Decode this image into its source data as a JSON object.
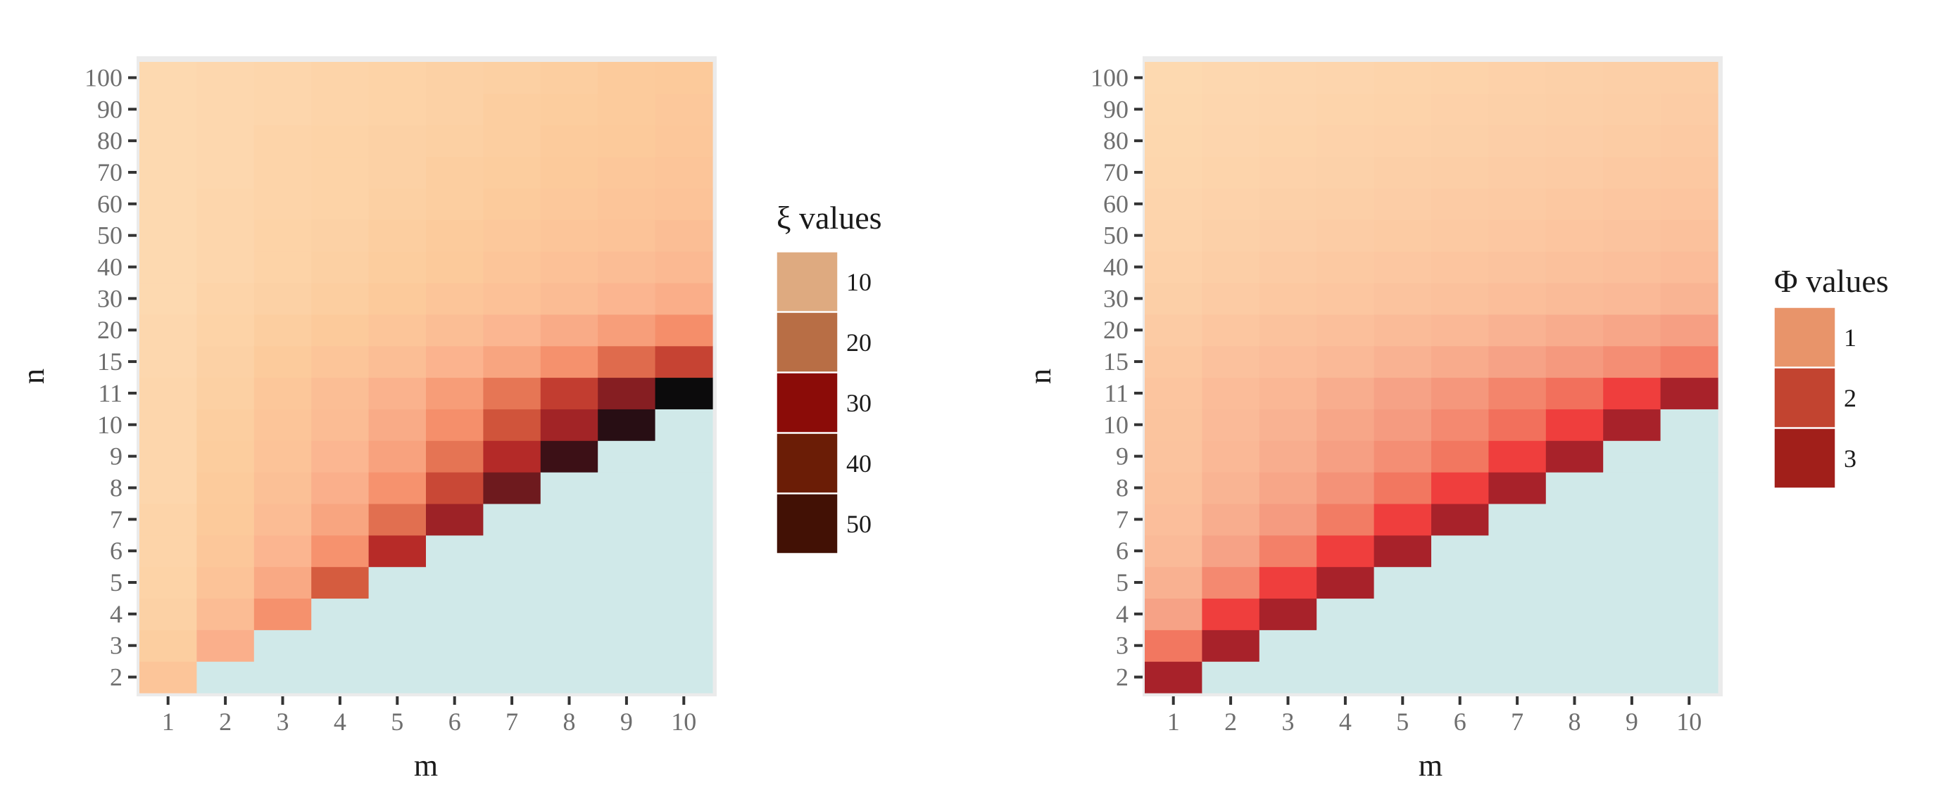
{
  "chart_data": [
    {
      "type": "heatmap",
      "title": "",
      "xlabel": "m",
      "ylabel": "n",
      "x_categories": [
        "1",
        "2",
        "3",
        "4",
        "5",
        "6",
        "7",
        "8",
        "9",
        "10"
      ],
      "y_categories": [
        "2",
        "3",
        "4",
        "5",
        "6",
        "7",
        "8",
        "9",
        "10",
        "11",
        "15",
        "20",
        "30",
        "40",
        "50",
        "60",
        "70",
        "80",
        "90",
        "100"
      ],
      "cell_rule": "defined when n > m",
      "missing_color": "#d0e9e9",
      "values": [
        [
          1.9,
          1.3,
          1.1,
          1.0,
          0.9,
          0.9,
          0.8,
          0.8,
          0.8,
          0.8,
          0.7,
          0.7,
          0.6,
          0.6,
          0.6,
          0.6,
          0.6,
          0.6,
          0.6,
          0.6
        ],
        [
          null,
          3.5,
          2.6,
          2.1,
          1.8,
          1.6,
          1.5,
          1.4,
          1.3,
          1.2,
          1.1,
          1.0,
          0.9,
          0.8,
          0.8,
          0.8,
          0.7,
          0.7,
          0.7,
          0.7
        ],
        [
          null,
          null,
          5.8,
          4.0,
          3.1,
          2.6,
          2.3,
          2.1,
          1.9,
          1.8,
          1.5,
          1.3,
          1.1,
          1.0,
          1.0,
          0.9,
          0.9,
          0.9,
          0.8,
          0.8
        ],
        [
          null,
          null,
          null,
          8.9,
          5.7,
          4.3,
          3.5,
          3.0,
          2.6,
          2.4,
          1.9,
          1.6,
          1.3,
          1.2,
          1.1,
          1.0,
          1.0,
          1.0,
          0.9,
          0.9
        ],
        [
          null,
          null,
          null,
          null,
          13.0,
          7.8,
          5.7,
          4.5,
          3.8,
          3.3,
          2.4,
          1.9,
          1.6,
          1.4,
          1.3,
          1.2,
          1.1,
          1.1,
          1.0,
          1.0
        ],
        [
          null,
          null,
          null,
          null,
          null,
          18.0,
          10.5,
          7.5,
          5.9,
          4.9,
          3.2,
          2.4,
          1.9,
          1.6,
          1.5,
          1.3,
          1.3,
          1.2,
          1.1,
          1.1
        ],
        [
          null,
          null,
          null,
          null,
          null,
          null,
          24.0,
          13.5,
          9.5,
          7.4,
          4.3,
          3.0,
          2.2,
          1.9,
          1.7,
          1.5,
          1.4,
          1.3,
          1.3,
          1.2
        ],
        [
          null,
          null,
          null,
          null,
          null,
          null,
          null,
          31.0,
          17.0,
          11.5,
          5.8,
          3.8,
          2.6,
          2.2,
          1.9,
          1.7,
          1.6,
          1.5,
          1.4,
          1.3
        ],
        [
          null,
          null,
          null,
          null,
          null,
          null,
          null,
          null,
          39.0,
          21.0,
          8.0,
          4.8,
          3.1,
          2.5,
          2.1,
          1.9,
          1.8,
          1.6,
          1.5,
          1.5
        ],
        [
          null,
          null,
          null,
          null,
          null,
          null,
          null,
          null,
          null,
          50.0,
          11.0,
          6.0,
          3.6,
          2.8,
          2.4,
          2.1,
          1.9,
          1.8,
          1.7,
          1.6
        ]
      ],
      "legend": {
        "symbol": "ξ",
        "title_suffix": "values",
        "breaks": [
          "10",
          "20",
          "30",
          "40",
          "50"
        ],
        "swatch_colors": [
          "#deaa80",
          "#b86e45",
          "#8b0c08",
          "#6b1d06",
          "#421105"
        ]
      }
    },
    {
      "type": "heatmap",
      "title": "",
      "xlabel": "m",
      "ylabel": "n",
      "x_categories": [
        "1",
        "2",
        "3",
        "4",
        "5",
        "6",
        "7",
        "8",
        "9",
        "10"
      ],
      "y_categories": [
        "2",
        "3",
        "4",
        "5",
        "6",
        "7",
        "8",
        "9",
        "10",
        "11",
        "15",
        "20",
        "30",
        "40",
        "50",
        "60",
        "70",
        "80",
        "90",
        "100"
      ],
      "cell_rule": "defined when n > m",
      "missing_color": "#d0e9e9",
      "values": [
        [
          3.0,
          1.8,
          1.3,
          1.1,
          0.95,
          0.85,
          0.8,
          0.75,
          0.72,
          0.7,
          0.62,
          0.55,
          0.45,
          0.4,
          0.35,
          0.32,
          0.28,
          0.25,
          0.22,
          0.2
        ],
        [
          null,
          3.0,
          2.2,
          1.6,
          1.3,
          1.15,
          1.05,
          1.0,
          0.95,
          0.9,
          0.78,
          0.68,
          0.55,
          0.48,
          0.42,
          0.38,
          0.33,
          0.3,
          0.27,
          0.24
        ],
        [
          null,
          null,
          3.0,
          2.2,
          1.7,
          1.4,
          1.25,
          1.15,
          1.08,
          1.02,
          0.88,
          0.76,
          0.62,
          0.54,
          0.47,
          0.42,
          0.37,
          0.33,
          0.3,
          0.27
        ],
        [
          null,
          null,
          null,
          3.0,
          2.2,
          1.75,
          1.5,
          1.35,
          1.25,
          1.15,
          0.98,
          0.84,
          0.68,
          0.59,
          0.52,
          0.46,
          0.41,
          0.37,
          0.33,
          0.3
        ],
        [
          null,
          null,
          null,
          null,
          3.0,
          2.2,
          1.8,
          1.55,
          1.4,
          1.3,
          1.08,
          0.92,
          0.74,
          0.64,
          0.56,
          0.5,
          0.45,
          0.4,
          0.36,
          0.33
        ],
        [
          null,
          null,
          null,
          null,
          null,
          3.0,
          2.2,
          1.8,
          1.6,
          1.45,
          1.18,
          1.0,
          0.8,
          0.69,
          0.6,
          0.54,
          0.48,
          0.43,
          0.39,
          0.36
        ],
        [
          null,
          null,
          null,
          null,
          null,
          null,
          3.0,
          2.2,
          1.85,
          1.65,
          1.3,
          1.08,
          0.86,
          0.74,
          0.65,
          0.58,
          0.52,
          0.47,
          0.42,
          0.39
        ],
        [
          null,
          null,
          null,
          null,
          null,
          null,
          null,
          3.0,
          2.2,
          1.85,
          1.42,
          1.16,
          0.92,
          0.79,
          0.69,
          0.62,
          0.55,
          0.5,
          0.45,
          0.42
        ],
        [
          null,
          null,
          null,
          null,
          null,
          null,
          null,
          null,
          3.0,
          2.2,
          1.55,
          1.25,
          0.98,
          0.84,
          0.74,
          0.66,
          0.59,
          0.53,
          0.48,
          0.45
        ],
        [
          null,
          null,
          null,
          null,
          null,
          null,
          null,
          null,
          null,
          3.0,
          1.7,
          1.35,
          1.05,
          0.9,
          0.79,
          0.7,
          0.63,
          0.57,
          0.52,
          0.48
        ]
      ],
      "legend": {
        "symbol": "Φ",
        "title_suffix": "values",
        "breaks": [
          "1",
          "2",
          "3"
        ],
        "swatch_colors": [
          "#e8946a",
          "#c24430",
          "#a11f1a"
        ]
      }
    }
  ]
}
